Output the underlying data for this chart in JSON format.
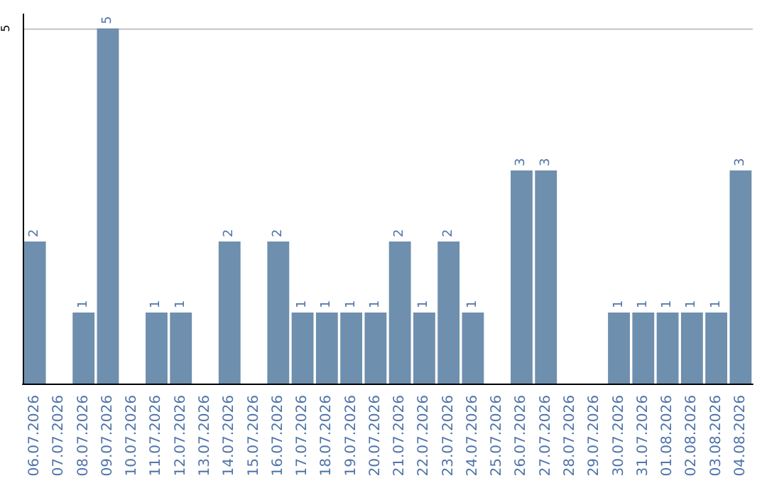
{
  "chart_data": {
    "type": "bar",
    "categories": [
      "06.07.2026",
      "07.07.2026",
      "08.07.2026",
      "09.07.2026",
      "10.07.2026",
      "11.07.2026",
      "12.07.2026",
      "13.07.2026",
      "14.07.2026",
      "15.07.2026",
      "16.07.2026",
      "17.07.2026",
      "18.07.2026",
      "19.07.2026",
      "20.07.2026",
      "21.07.2026",
      "22.07.2026",
      "23.07.2026",
      "24.07.2026",
      "25.07.2026",
      "26.07.2026",
      "27.07.2026",
      "28.07.2026",
      "29.07.2026",
      "30.07.2026",
      "31.07.2026",
      "01.08.2026",
      "02.08.2026",
      "03.08.2026",
      "04.08.2026"
    ],
    "values": [
      2,
      0,
      1,
      5,
      0,
      1,
      1,
      0,
      2,
      0,
      2,
      1,
      1,
      1,
      1,
      2,
      1,
      2,
      1,
      0,
      3,
      3,
      0,
      0,
      1,
      1,
      1,
      1,
      1,
      3
    ],
    "value_labels": [
      "2",
      null,
      "1",
      "5",
      null,
      "1",
      "1",
      null,
      "2",
      null,
      "2",
      "1",
      "1",
      "1",
      "1",
      "2",
      "1",
      "2",
      "1",
      null,
      "3",
      "3",
      null,
      null,
      "1",
      "1",
      "1",
      "1",
      "1",
      "3"
    ],
    "color": "#6e8fad",
    "ylim": [
      0,
      5.2
    ],
    "yticks": [
      5
    ],
    "grid": "y"
  }
}
